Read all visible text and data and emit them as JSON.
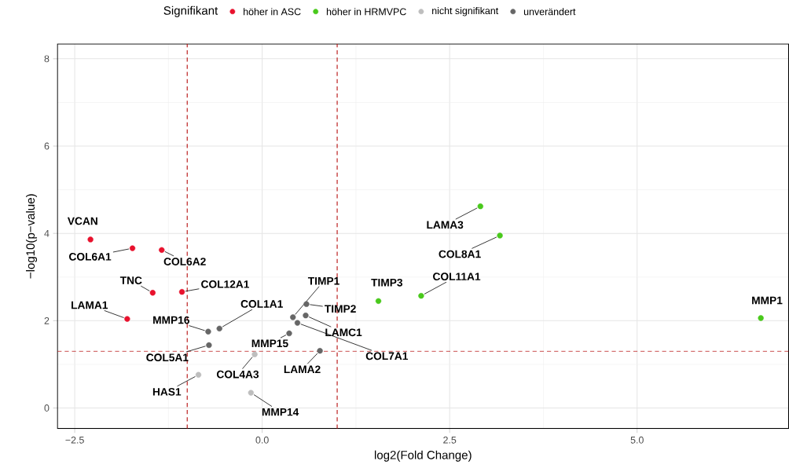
{
  "chart_data": {
    "type": "scatter",
    "xlabel": "log2(Fold Change)",
    "ylabel": "−log10(p−value)",
    "legend_title": "Signifikant",
    "legend": "top",
    "grid": true,
    "marker": "circle",
    "xlim": [
      -2.73,
      7.02
    ],
    "ylim": [
      -0.47,
      8.34
    ],
    "xticks": [
      {
        "value": -2.5,
        "label": "−2.5"
      },
      {
        "value": 0,
        "label": "0.0"
      },
      {
        "value": 2.5,
        "label": "2.5"
      },
      {
        "value": 5,
        "label": "5.0"
      }
    ],
    "yticks": [
      0,
      2,
      4,
      6,
      8
    ],
    "series": [
      {
        "name": "höher in ASC",
        "color": "#e8112d",
        "x": [
          -2.29,
          -1.73,
          -1.34,
          -1.46,
          -1.07,
          -1.8
        ],
        "values": [
          3.86,
          3.66,
          3.62,
          2.64,
          2.66,
          2.04
        ]
      },
      {
        "name": "höher in HRMVPC",
        "color": "#49c91c",
        "x": [
          2.91,
          3.17,
          2.12,
          1.55,
          6.65
        ],
        "values": [
          4.62,
          3.95,
          2.57,
          2.45,
          2.06
        ]
      },
      {
        "name": "nicht signifikant",
        "color": "#bebebe",
        "x": [
          -0.1,
          -0.85,
          -0.15
        ],
        "values": [
          1.23,
          0.76,
          0.35
        ]
      },
      {
        "name": "unverändert",
        "color": "#666666",
        "x": [
          -0.72,
          -0.57,
          -0.71,
          0.41,
          0.59,
          0.58,
          0.47,
          0.36,
          0.77
        ],
        "values": [
          1.75,
          1.82,
          1.44,
          2.08,
          2.38,
          2.12,
          1.95,
          1.71,
          1.31
        ]
      }
    ],
    "ref_lines": [
      {
        "axis": "x",
        "value": -1,
        "color": "#b30000",
        "line_style": "dashed"
      },
      {
        "axis": "x",
        "value": 1,
        "color": "#b30000",
        "line_style": "dashed"
      },
      {
        "axis": "y",
        "value": 1.3,
        "color": "#b30000",
        "line_style": "dashed"
      }
    ],
    "annotations": [
      {
        "text": "VCAN",
        "x": -2.29,
        "y": 3.86
      },
      {
        "text": "COL6A1",
        "x": -1.73,
        "y": 3.66
      },
      {
        "text": "COL6A2",
        "x": -1.34,
        "y": 3.62
      },
      {
        "text": "TNC",
        "x": -1.46,
        "y": 2.64
      },
      {
        "text": "COL12A1",
        "x": -1.07,
        "y": 2.66
      },
      {
        "text": "LAMA1",
        "x": -1.8,
        "y": 2.04
      },
      {
        "text": "MMP16",
        "x": -0.72,
        "y": 1.75
      },
      {
        "text": "COL1A1",
        "x": -0.57,
        "y": 1.82
      },
      {
        "text": "COL5A1",
        "x": -0.71,
        "y": 1.44
      },
      {
        "text": "MMP15",
        "x": 0.36,
        "y": 1.71
      },
      {
        "text": "COL4A3",
        "x": -0.1,
        "y": 1.23
      },
      {
        "text": "HAS1",
        "x": -0.85,
        "y": 0.76
      },
      {
        "text": "MMP14",
        "x": -0.15,
        "y": 0.35
      },
      {
        "text": "TIMP1",
        "x": 0.41,
        "y": 2.08
      },
      {
        "text": "TIMP2",
        "x": 0.59,
        "y": 2.38
      },
      {
        "text": "LAMC1",
        "x": 0.58,
        "y": 2.12
      },
      {
        "text": "COL7A1",
        "x": 0.47,
        "y": 1.95
      },
      {
        "text": "LAMA2",
        "x": 0.77,
        "y": 1.31
      },
      {
        "text": "TIMP3",
        "x": 1.55,
        "y": 2.45
      },
      {
        "text": "COL11A1",
        "x": 2.12,
        "y": 2.57
      },
      {
        "text": "LAMA3",
        "x": 2.91,
        "y": 4.62
      },
      {
        "text": "COL8A1",
        "x": 3.17,
        "y": 3.95
      },
      {
        "text": "MMP1",
        "x": 6.65,
        "y": 2.06
      }
    ]
  }
}
